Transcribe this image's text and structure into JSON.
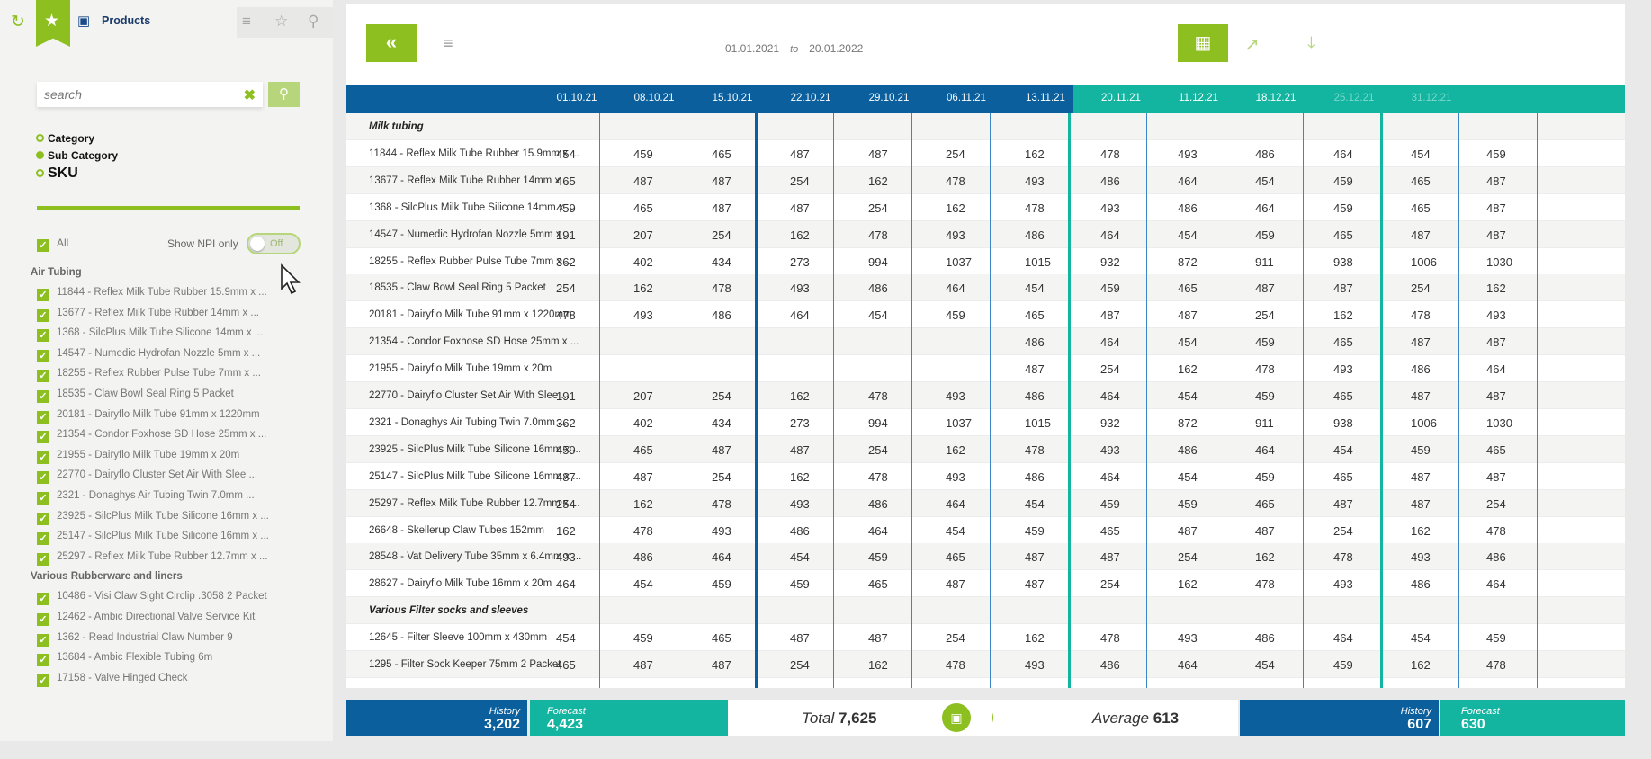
{
  "sidebar": {
    "title": "Products",
    "search": {
      "placeholder": "search",
      "value": ""
    },
    "levels": [
      {
        "label": "Category",
        "selected": false
      },
      {
        "label": "Sub Category",
        "selected": true
      },
      {
        "label": "SKU",
        "selected": false
      }
    ],
    "all_label": "All",
    "npi_label": "Show NPI only",
    "npi_toggle": "Off",
    "groups": [
      {
        "name": "Air Tubing",
        "items": [
          "11844 - Reflex Milk Tube Rubber 15.9mm x ...",
          "13677 - Reflex Milk Tube Rubber 14mm x ...",
          "1368 - SilcPlus Milk Tube Silicone 14mm x ...",
          "14547 - Numedic Hydrofan Nozzle 5mm x ...",
          "18255 - Reflex Rubber Pulse Tube 7mm x ...",
          "18535 - Claw Bowl Seal Ring 5 Packet",
          "20181 - Dairyflo Milk Tube 91mm x 1220mm",
          "21354 - Condor Foxhose SD Hose 25mm x ...",
          "21955 - Dairyflo Milk Tube 19mm x 20m",
          "22770 - Dairyflo Cluster Set Air With Slee ...",
          "2321 - Donaghys Air Tubing Twin 7.0mm ...",
          "23925 - SilcPlus Milk Tube Silicone 16mm x ...",
          "25147 - SilcPlus Milk Tube Silicone 16mm x ...",
          "25297 - Reflex Milk Tube Rubber 12.7mm x ..."
        ]
      },
      {
        "name": "Various Rubberware and liners",
        "items": [
          "10486 - Visi Claw Sight Circlip .3058 2 Packet",
          "12462 - Ambic Directional Valve Service Kit",
          "1362 - Read Industrial Claw Number 9",
          "13684 - Ambic Flexible Tubing 6m",
          "17158 - Valve Hinged Check"
        ]
      }
    ]
  },
  "header": {
    "date_from": "01.01.2021",
    "date_to_word": "to",
    "date_to": "20.01.2022"
  },
  "table": {
    "columns": [
      "01.10.21",
      "08.10.21",
      "15.10.21",
      "22.10.21",
      "29.10.21",
      "06.11.21",
      "13.11.21",
      "20.11.21",
      "11.12.21",
      "18.12.21",
      "25.12.21",
      "31.12.21",
      ""
    ],
    "rows": [
      {
        "label": "Milk tubing",
        "group": true,
        "values": []
      },
      {
        "label": "11844 - Reflex Milk Tube Rubber 15.9mm x ...",
        "values": [
          "454",
          "459",
          "465",
          "487",
          "487",
          "254",
          "162",
          "478",
          "493",
          "486",
          "464",
          "454",
          "459"
        ]
      },
      {
        "label": "13677 - Reflex Milk Tube Rubber 14mm x ...",
        "values": [
          "465",
          "487",
          "487",
          "254",
          "162",
          "478",
          "493",
          "486",
          "464",
          "454",
          "459",
          "465",
          "487"
        ]
      },
      {
        "label": "1368 - SilcPlus Milk Tube Silicone 14mm x ...",
        "values": [
          "459",
          "465",
          "487",
          "487",
          "254",
          "162",
          "478",
          "493",
          "486",
          "464",
          "459",
          "465",
          "487"
        ]
      },
      {
        "label": "14547 - Numedic Hydrofan Nozzle 5mm x ...",
        "values": [
          "191",
          "207",
          "254",
          "162",
          "478",
          "493",
          "486",
          "464",
          "454",
          "459",
          "465",
          "487",
          "487"
        ]
      },
      {
        "label": "18255 - Reflex Rubber Pulse Tube 7mm x ...",
        "values": [
          "362",
          "402",
          "434",
          "273",
          "994",
          "1037",
          "1015",
          "932",
          "872",
          "911",
          "938",
          "1006",
          "1030"
        ]
      },
      {
        "label": "18535 - Claw Bowl Seal Ring 5 Packet",
        "values": [
          "254",
          "162",
          "478",
          "493",
          "486",
          "464",
          "454",
          "459",
          "465",
          "487",
          "487",
          "254",
          "162"
        ]
      },
      {
        "label": "20181 - Dairyflo Milk Tube 91mm x 1220mm",
        "values": [
          "478",
          "493",
          "486",
          "464",
          "454",
          "459",
          "465",
          "487",
          "487",
          "254",
          "162",
          "478",
          "493"
        ]
      },
      {
        "label": "21354 - Condor Foxhose SD Hose 25mm x ...",
        "values": [
          "",
          "",
          "",
          "",
          "",
          "",
          "486",
          "464",
          "454",
          "459",
          "465",
          "487",
          "487"
        ]
      },
      {
        "label": "21955 - Dairyflo Milk Tube 19mm x 20m",
        "values": [
          "",
          "",
          "",
          "",
          "",
          "",
          "487",
          "254",
          "162",
          "478",
          "493",
          "486",
          "464"
        ]
      },
      {
        "label": "22770 - Dairyflo Cluster Set Air With Slee ...",
        "values": [
          "191",
          "207",
          "254",
          "162",
          "478",
          "493",
          "486",
          "464",
          "454",
          "459",
          "465",
          "487",
          "487"
        ]
      },
      {
        "label": "2321 - Donaghys Air Tubing Twin 7.0mm ...",
        "values": [
          "362",
          "402",
          "434",
          "273",
          "994",
          "1037",
          "1015",
          "932",
          "872",
          "911",
          "938",
          "1006",
          "1030"
        ]
      },
      {
        "label": "23925 - SilcPlus Milk Tube Silicone 16mm x ...",
        "values": [
          "459",
          "465",
          "487",
          "487",
          "254",
          "162",
          "478",
          "493",
          "486",
          "464",
          "454",
          "459",
          "465"
        ]
      },
      {
        "label": "25147 - SilcPlus Milk Tube Silicone 16mm x ...",
        "values": [
          "487",
          "487",
          "254",
          "162",
          "478",
          "493",
          "486",
          "464",
          "454",
          "459",
          "465",
          "487",
          "487"
        ]
      },
      {
        "label": "25297 - Reflex Milk Tube Rubber 12.7mm x ...",
        "values": [
          "254",
          "162",
          "478",
          "493",
          "486",
          "464",
          "454",
          "459",
          "459",
          "465",
          "487",
          "487",
          "254"
        ]
      },
      {
        "label": "26648 - Skellerup Claw Tubes 152mm",
        "values": [
          "162",
          "478",
          "493",
          "486",
          "464",
          "454",
          "459",
          "465",
          "487",
          "487",
          "254",
          "162",
          "478"
        ]
      },
      {
        "label": "28548 - Vat Delivery Tube 35mm x 6.4mm x ...",
        "values": [
          "493",
          "486",
          "464",
          "454",
          "459",
          "465",
          "487",
          "487",
          "254",
          "162",
          "478",
          "493",
          "486"
        ]
      },
      {
        "label": "28627 - Dairyflo Milk Tube 16mm x 20m",
        "values": [
          "464",
          "454",
          "459",
          "459",
          "465",
          "487",
          "487",
          "254",
          "162",
          "478",
          "493",
          "486",
          "464"
        ]
      },
      {
        "label": "Various Filter socks and sleeves",
        "group": true,
        "values": []
      },
      {
        "label": "12645 - Filter Sleeve 100mm x 430mm",
        "values": [
          "454",
          "459",
          "465",
          "487",
          "487",
          "254",
          "162",
          "478",
          "493",
          "486",
          "464",
          "454",
          "459"
        ]
      },
      {
        "label": "1295 - Filter Sock Keeper 75mm 2 Packet",
        "values": [
          "465",
          "487",
          "487",
          "254",
          "162",
          "478",
          "493",
          "486",
          "464",
          "454",
          "459",
          "162",
          "478"
        ]
      }
    ]
  },
  "footer": {
    "history_label": "History",
    "history_value": "3,202",
    "forecast_label": "Forecast",
    "forecast_value": "4,423",
    "total_label": "Total",
    "total_value": "7,625",
    "average_label": "Average",
    "average_value": "613",
    "history2_label": "History",
    "history2_value": "607",
    "forecast2_label": "Forecast",
    "forecast2_value": "630"
  },
  "colors": {
    "accent": "#8cbf1f",
    "history": "#0a5f9c",
    "forecast": "#13b5a0"
  }
}
